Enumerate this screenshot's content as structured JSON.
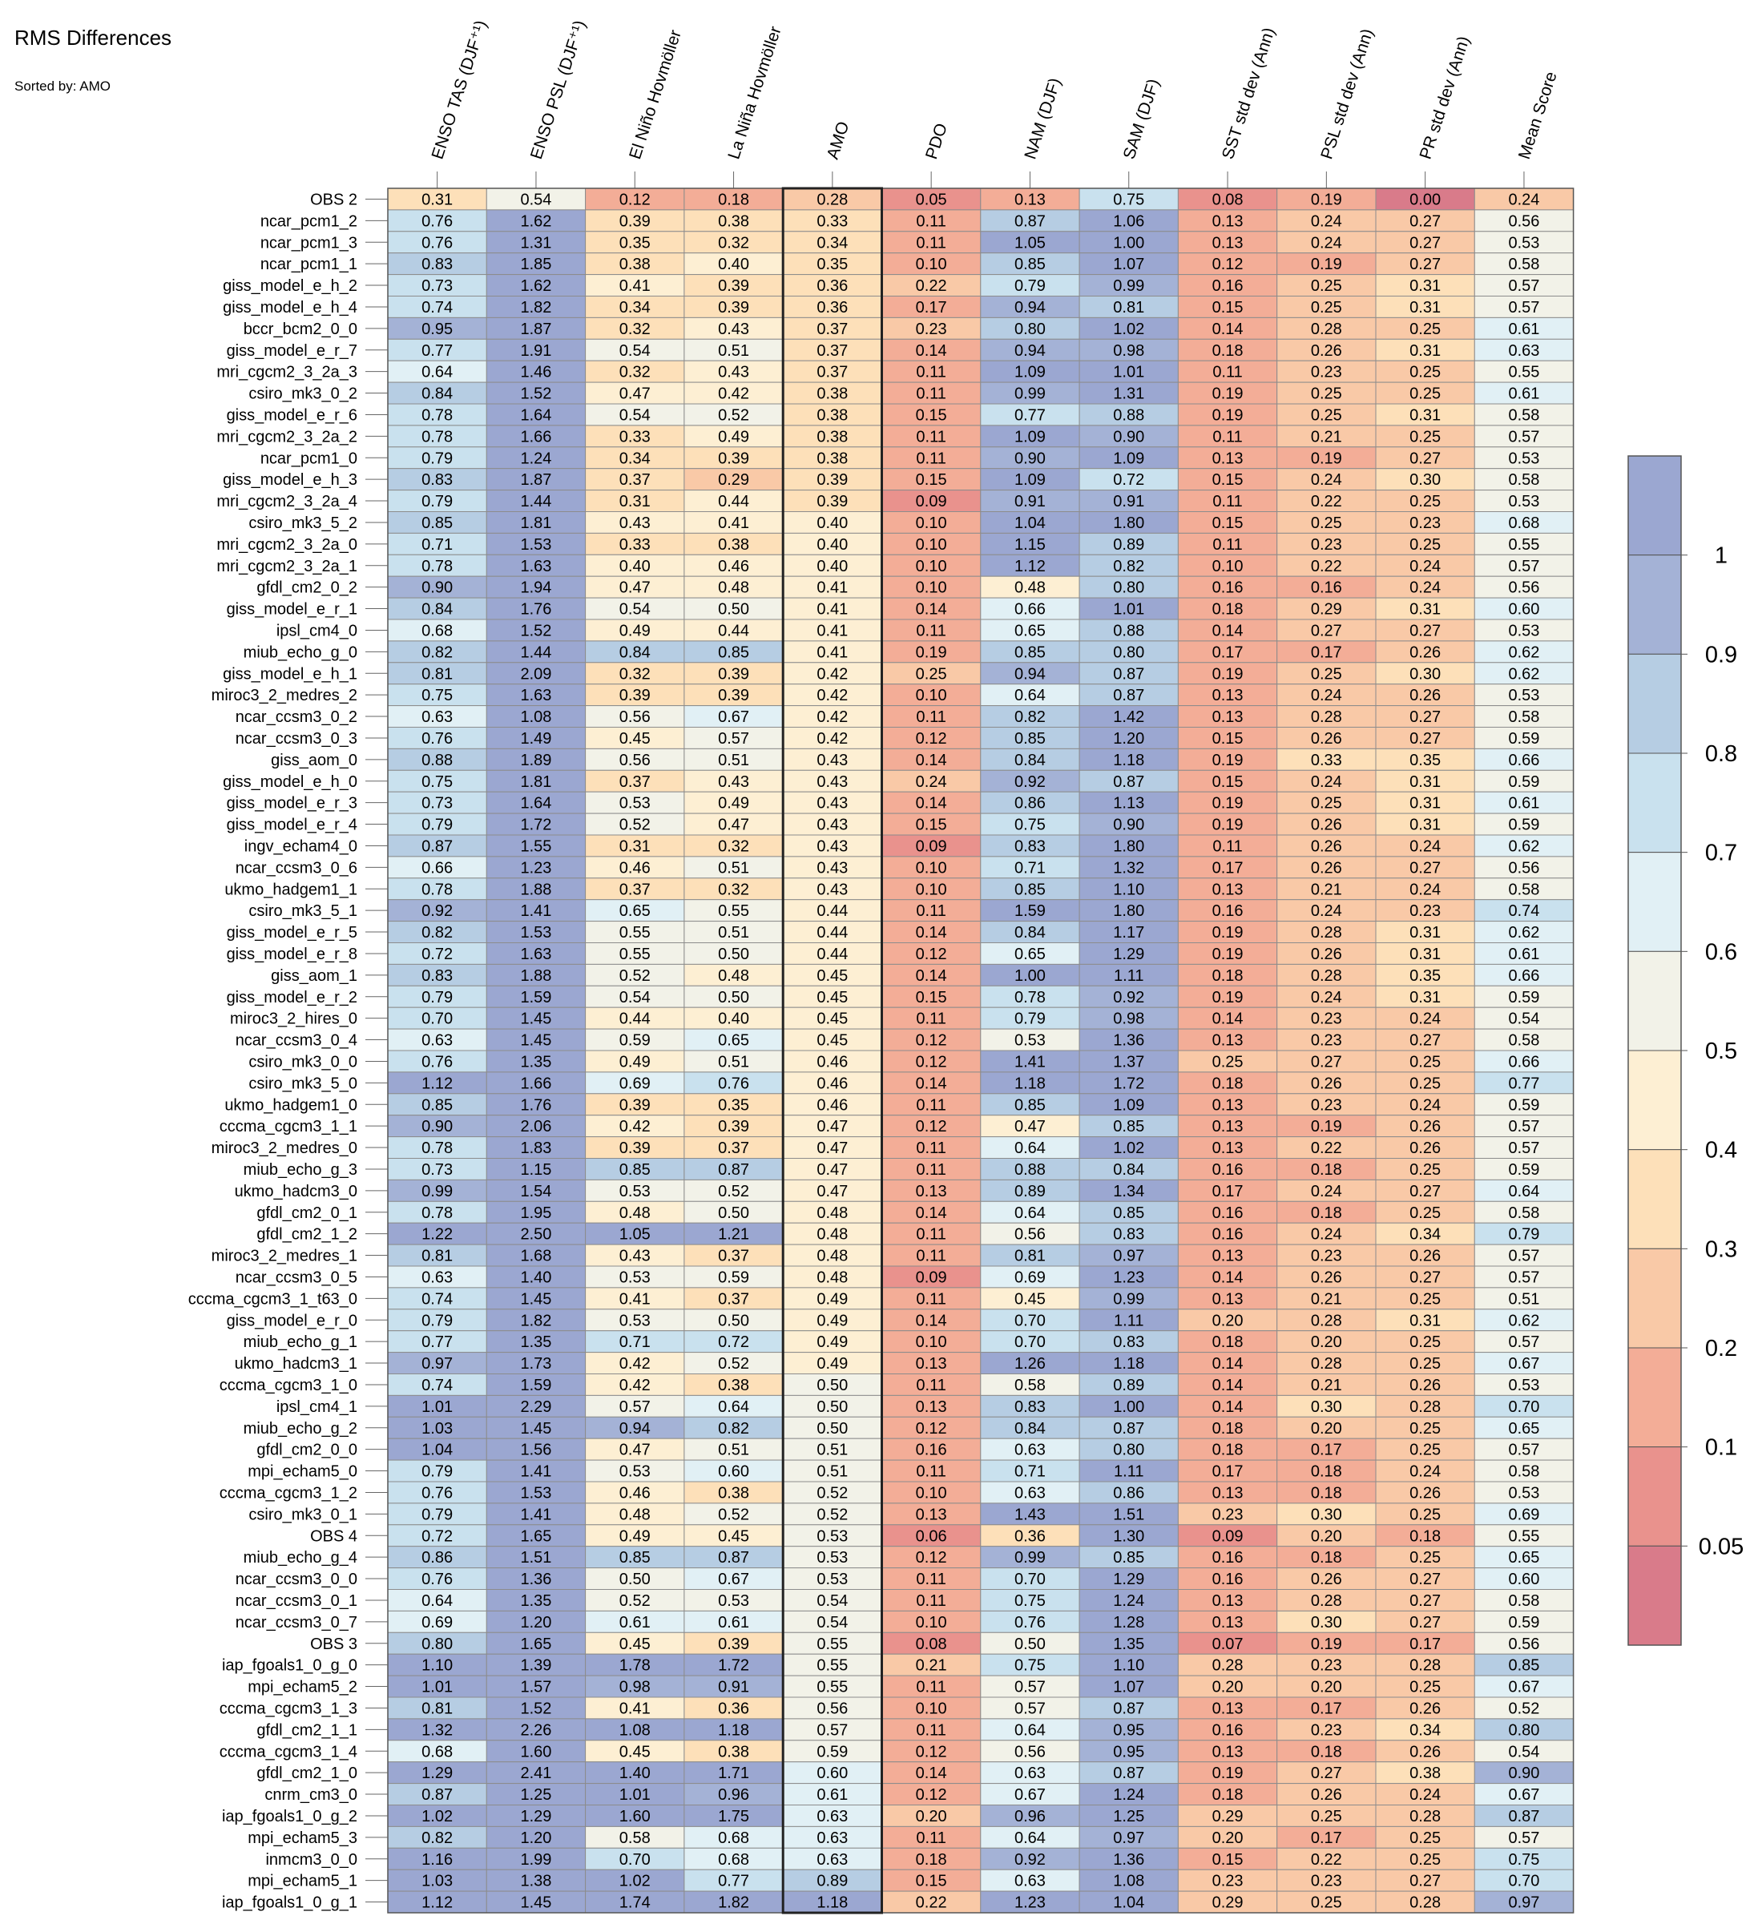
{
  "title": "RMS Differences",
  "subtitle": "Sorted by: AMO",
  "chart_data": {
    "type": "heatmap",
    "columns": [
      "ENSO TAS (DJF⁺¹)",
      "ENSO PSL (DJF⁺¹)",
      "El Niño Hovmöller",
      "La Niña Hovmöller",
      "AMO",
      "PDO",
      "NAM (DJF)",
      "SAM (DJF)",
      "SST std dev (Ann)",
      "PSL std dev (Ann)",
      "PR std dev (Ann)",
      "Mean Score"
    ],
    "sorted_by": "AMO",
    "highlighted_column": "AMO",
    "rows": [
      "OBS 2",
      "ncar_pcm1_2",
      "ncar_pcm1_3",
      "ncar_pcm1_1",
      "giss_model_e_h_2",
      "giss_model_e_h_4",
      "bccr_bcm2_0_0",
      "giss_model_e_r_7",
      "mri_cgcm2_3_2a_3",
      "csiro_mk3_0_2",
      "giss_model_e_r_6",
      "mri_cgcm2_3_2a_2",
      "ncar_pcm1_0",
      "giss_model_e_h_3",
      "mri_cgcm2_3_2a_4",
      "csiro_mk3_5_2",
      "mri_cgcm2_3_2a_0",
      "mri_cgcm2_3_2a_1",
      "gfdl_cm2_0_2",
      "giss_model_e_r_1",
      "ipsl_cm4_0",
      "miub_echo_g_0",
      "giss_model_e_h_1",
      "miroc3_2_medres_2",
      "ncar_ccsm3_0_2",
      "ncar_ccsm3_0_3",
      "giss_aom_0",
      "giss_model_e_h_0",
      "giss_model_e_r_3",
      "giss_model_e_r_4",
      "ingv_echam4_0",
      "ncar_ccsm3_0_6",
      "ukmo_hadgem1_1",
      "csiro_mk3_5_1",
      "giss_model_e_r_5",
      "giss_model_e_r_8",
      "giss_aom_1",
      "giss_model_e_r_2",
      "miroc3_2_hires_0",
      "ncar_ccsm3_0_4",
      "csiro_mk3_0_0",
      "csiro_mk3_5_0",
      "ukmo_hadgem1_0",
      "cccma_cgcm3_1_1",
      "miroc3_2_medres_0",
      "miub_echo_g_3",
      "ukmo_hadcm3_0",
      "gfdl_cm2_0_1",
      "gfdl_cm2_1_2",
      "miroc3_2_medres_1",
      "ncar_ccsm3_0_5",
      "cccma_cgcm3_1_t63_0",
      "giss_model_e_r_0",
      "miub_echo_g_1",
      "ukmo_hadcm3_1",
      "cccma_cgcm3_1_0",
      "ipsl_cm4_1",
      "miub_echo_g_2",
      "gfdl_cm2_0_0",
      "mpi_echam5_0",
      "cccma_cgcm3_1_2",
      "csiro_mk3_0_1",
      "OBS 4",
      "miub_echo_g_4",
      "ncar_ccsm3_0_0",
      "ncar_ccsm3_0_1",
      "ncar_ccsm3_0_7",
      "OBS 3",
      "iap_fgoals1_0_g_0",
      "mpi_echam5_2",
      "cccma_cgcm3_1_3",
      "gfdl_cm2_1_1",
      "cccma_cgcm3_1_4",
      "gfdl_cm2_1_0",
      "cnrm_cm3_0",
      "iap_fgoals1_0_g_2",
      "mpi_echam5_3",
      "inmcm3_0_0",
      "mpi_echam5_1",
      "iap_fgoals1_0_g_1"
    ],
    "values": [
      [
        "0.31",
        "0.54",
        "0.12",
        "0.18",
        "0.28",
        "0.05",
        "0.13",
        "0.75",
        "0.08",
        "0.19",
        "0.00",
        "0.24"
      ],
      [
        "0.76",
        "1.62",
        "0.39",
        "0.38",
        "0.33",
        "0.11",
        "0.87",
        "1.06",
        "0.13",
        "0.24",
        "0.27",
        "0.56"
      ],
      [
        "0.76",
        "1.31",
        "0.35",
        "0.32",
        "0.34",
        "0.11",
        "1.05",
        "1.00",
        "0.13",
        "0.24",
        "0.27",
        "0.53"
      ],
      [
        "0.83",
        "1.85",
        "0.38",
        "0.40",
        "0.35",
        "0.10",
        "0.85",
        "1.07",
        "0.12",
        "0.19",
        "0.27",
        "0.58"
      ],
      [
        "0.73",
        "1.62",
        "0.41",
        "0.39",
        "0.36",
        "0.22",
        "0.79",
        "0.99",
        "0.16",
        "0.25",
        "0.31",
        "0.57"
      ],
      [
        "0.74",
        "1.82",
        "0.34",
        "0.39",
        "0.36",
        "0.17",
        "0.94",
        "0.81",
        "0.15",
        "0.25",
        "0.31",
        "0.57"
      ],
      [
        "0.95",
        "1.87",
        "0.32",
        "0.43",
        "0.37",
        "0.23",
        "0.80",
        "1.02",
        "0.14",
        "0.28",
        "0.25",
        "0.61"
      ],
      [
        "0.77",
        "1.91",
        "0.54",
        "0.51",
        "0.37",
        "0.14",
        "0.94",
        "0.98",
        "0.18",
        "0.26",
        "0.31",
        "0.63"
      ],
      [
        "0.64",
        "1.46",
        "0.32",
        "0.43",
        "0.37",
        "0.11",
        "1.09",
        "1.01",
        "0.11",
        "0.23",
        "0.25",
        "0.55"
      ],
      [
        "0.84",
        "1.52",
        "0.47",
        "0.42",
        "0.38",
        "0.11",
        "0.99",
        "1.31",
        "0.19",
        "0.25",
        "0.25",
        "0.61"
      ],
      [
        "0.78",
        "1.64",
        "0.54",
        "0.52",
        "0.38",
        "0.15",
        "0.77",
        "0.88",
        "0.19",
        "0.25",
        "0.31",
        "0.58"
      ],
      [
        "0.78",
        "1.66",
        "0.33",
        "0.49",
        "0.38",
        "0.11",
        "1.09",
        "0.90",
        "0.11",
        "0.21",
        "0.25",
        "0.57"
      ],
      [
        "0.79",
        "1.24",
        "0.34",
        "0.39",
        "0.38",
        "0.11",
        "0.90",
        "1.09",
        "0.13",
        "0.19",
        "0.27",
        "0.53"
      ],
      [
        "0.83",
        "1.87",
        "0.37",
        "0.29",
        "0.39",
        "0.15",
        "1.09",
        "0.72",
        "0.15",
        "0.24",
        "0.30",
        "0.58"
      ],
      [
        "0.79",
        "1.44",
        "0.31",
        "0.44",
        "0.39",
        "0.09",
        "0.91",
        "0.91",
        "0.11",
        "0.22",
        "0.25",
        "0.53"
      ],
      [
        "0.85",
        "1.81",
        "0.43",
        "0.41",
        "0.40",
        "0.10",
        "1.04",
        "1.80",
        "0.15",
        "0.25",
        "0.23",
        "0.68"
      ],
      [
        "0.71",
        "1.53",
        "0.33",
        "0.38",
        "0.40",
        "0.10",
        "1.15",
        "0.89",
        "0.11",
        "0.23",
        "0.25",
        "0.55"
      ],
      [
        "0.78",
        "1.63",
        "0.40",
        "0.46",
        "0.40",
        "0.10",
        "1.12",
        "0.82",
        "0.10",
        "0.22",
        "0.24",
        "0.57"
      ],
      [
        "0.90",
        "1.94",
        "0.47",
        "0.48",
        "0.41",
        "0.10",
        "0.48",
        "0.80",
        "0.16",
        "0.16",
        "0.24",
        "0.56"
      ],
      [
        "0.84",
        "1.76",
        "0.54",
        "0.50",
        "0.41",
        "0.14",
        "0.66",
        "1.01",
        "0.18",
        "0.29",
        "0.31",
        "0.60"
      ],
      [
        "0.68",
        "1.52",
        "0.49",
        "0.44",
        "0.41",
        "0.11",
        "0.65",
        "0.88",
        "0.14",
        "0.27",
        "0.27",
        "0.53"
      ],
      [
        "0.82",
        "1.44",
        "0.84",
        "0.85",
        "0.41",
        "0.19",
        "0.85",
        "0.80",
        "0.17",
        "0.17",
        "0.26",
        "0.62"
      ],
      [
        "0.81",
        "2.09",
        "0.32",
        "0.39",
        "0.42",
        "0.25",
        "0.94",
        "0.87",
        "0.19",
        "0.25",
        "0.30",
        "0.62"
      ],
      [
        "0.75",
        "1.63",
        "0.39",
        "0.39",
        "0.42",
        "0.10",
        "0.64",
        "0.87",
        "0.13",
        "0.24",
        "0.26",
        "0.53"
      ],
      [
        "0.63",
        "1.08",
        "0.56",
        "0.67",
        "0.42",
        "0.11",
        "0.82",
        "1.42",
        "0.13",
        "0.28",
        "0.27",
        "0.58"
      ],
      [
        "0.76",
        "1.49",
        "0.45",
        "0.57",
        "0.42",
        "0.12",
        "0.85",
        "1.20",
        "0.15",
        "0.26",
        "0.27",
        "0.59"
      ],
      [
        "0.88",
        "1.89",
        "0.56",
        "0.51",
        "0.43",
        "0.14",
        "0.84",
        "1.18",
        "0.19",
        "0.33",
        "0.35",
        "0.66"
      ],
      [
        "0.75",
        "1.81",
        "0.37",
        "0.43",
        "0.43",
        "0.24",
        "0.92",
        "0.87",
        "0.15",
        "0.24",
        "0.31",
        "0.59"
      ],
      [
        "0.73",
        "1.64",
        "0.53",
        "0.49",
        "0.43",
        "0.14",
        "0.86",
        "1.13",
        "0.19",
        "0.25",
        "0.31",
        "0.61"
      ],
      [
        "0.79",
        "1.72",
        "0.52",
        "0.47",
        "0.43",
        "0.15",
        "0.75",
        "0.90",
        "0.19",
        "0.26",
        "0.31",
        "0.59"
      ],
      [
        "0.87",
        "1.55",
        "0.31",
        "0.32",
        "0.43",
        "0.09",
        "0.83",
        "1.80",
        "0.11",
        "0.26",
        "0.24",
        "0.62"
      ],
      [
        "0.66",
        "1.23",
        "0.46",
        "0.51",
        "0.43",
        "0.10",
        "0.71",
        "1.32",
        "0.17",
        "0.26",
        "0.27",
        "0.56"
      ],
      [
        "0.78",
        "1.88",
        "0.37",
        "0.32",
        "0.43",
        "0.10",
        "0.85",
        "1.10",
        "0.13",
        "0.21",
        "0.24",
        "0.58"
      ],
      [
        "0.92",
        "1.41",
        "0.65",
        "0.55",
        "0.44",
        "0.11",
        "1.59",
        "1.80",
        "0.16",
        "0.24",
        "0.23",
        "0.74"
      ],
      [
        "0.82",
        "1.53",
        "0.55",
        "0.51",
        "0.44",
        "0.14",
        "0.84",
        "1.17",
        "0.19",
        "0.28",
        "0.31",
        "0.62"
      ],
      [
        "0.72",
        "1.63",
        "0.55",
        "0.50",
        "0.44",
        "0.12",
        "0.65",
        "1.29",
        "0.19",
        "0.26",
        "0.31",
        "0.61"
      ],
      [
        "0.83",
        "1.88",
        "0.52",
        "0.48",
        "0.45",
        "0.14",
        "1.00",
        "1.11",
        "0.18",
        "0.28",
        "0.35",
        "0.66"
      ],
      [
        "0.79",
        "1.59",
        "0.54",
        "0.50",
        "0.45",
        "0.15",
        "0.78",
        "0.92",
        "0.19",
        "0.24",
        "0.31",
        "0.59"
      ],
      [
        "0.70",
        "1.45",
        "0.44",
        "0.40",
        "0.45",
        "0.11",
        "0.79",
        "0.98",
        "0.14",
        "0.23",
        "0.24",
        "0.54"
      ],
      [
        "0.63",
        "1.45",
        "0.59",
        "0.65",
        "0.45",
        "0.12",
        "0.53",
        "1.36",
        "0.13",
        "0.23",
        "0.27",
        "0.58"
      ],
      [
        "0.76",
        "1.35",
        "0.49",
        "0.51",
        "0.46",
        "0.12",
        "1.41",
        "1.37",
        "0.25",
        "0.27",
        "0.25",
        "0.66"
      ],
      [
        "1.12",
        "1.66",
        "0.69",
        "0.76",
        "0.46",
        "0.14",
        "1.18",
        "1.72",
        "0.18",
        "0.26",
        "0.25",
        "0.77"
      ],
      [
        "0.85",
        "1.76",
        "0.39",
        "0.35",
        "0.46",
        "0.11",
        "0.85",
        "1.09",
        "0.13",
        "0.23",
        "0.24",
        "0.59"
      ],
      [
        "0.90",
        "2.06",
        "0.42",
        "0.39",
        "0.47",
        "0.12",
        "0.47",
        "0.85",
        "0.13",
        "0.19",
        "0.26",
        "0.57"
      ],
      [
        "0.78",
        "1.83",
        "0.39",
        "0.37",
        "0.47",
        "0.11",
        "0.64",
        "1.02",
        "0.13",
        "0.22",
        "0.26",
        "0.57"
      ],
      [
        "0.73",
        "1.15",
        "0.85",
        "0.87",
        "0.47",
        "0.11",
        "0.88",
        "0.84",
        "0.16",
        "0.18",
        "0.25",
        "0.59"
      ],
      [
        "0.99",
        "1.54",
        "0.53",
        "0.52",
        "0.47",
        "0.13",
        "0.89",
        "1.34",
        "0.17",
        "0.24",
        "0.27",
        "0.64"
      ],
      [
        "0.78",
        "1.95",
        "0.48",
        "0.50",
        "0.48",
        "0.14",
        "0.64",
        "0.85",
        "0.16",
        "0.18",
        "0.25",
        "0.58"
      ],
      [
        "1.22",
        "2.50",
        "1.05",
        "1.21",
        "0.48",
        "0.11",
        "0.56",
        "0.83",
        "0.16",
        "0.24",
        "0.34",
        "0.79"
      ],
      [
        "0.81",
        "1.68",
        "0.43",
        "0.37",
        "0.48",
        "0.11",
        "0.81",
        "0.97",
        "0.13",
        "0.23",
        "0.26",
        "0.57"
      ],
      [
        "0.63",
        "1.40",
        "0.53",
        "0.59",
        "0.48",
        "0.09",
        "0.69",
        "1.23",
        "0.14",
        "0.26",
        "0.27",
        "0.57"
      ],
      [
        "0.74",
        "1.45",
        "0.41",
        "0.37",
        "0.49",
        "0.11",
        "0.45",
        "0.99",
        "0.13",
        "0.21",
        "0.25",
        "0.51"
      ],
      [
        "0.79",
        "1.82",
        "0.53",
        "0.50",
        "0.49",
        "0.14",
        "0.70",
        "1.11",
        "0.20",
        "0.28",
        "0.31",
        "0.62"
      ],
      [
        "0.77",
        "1.35",
        "0.71",
        "0.72",
        "0.49",
        "0.10",
        "0.70",
        "0.83",
        "0.18",
        "0.20",
        "0.25",
        "0.57"
      ],
      [
        "0.97",
        "1.73",
        "0.42",
        "0.52",
        "0.49",
        "0.13",
        "1.26",
        "1.18",
        "0.14",
        "0.28",
        "0.25",
        "0.67"
      ],
      [
        "0.74",
        "1.59",
        "0.42",
        "0.38",
        "0.50",
        "0.11",
        "0.58",
        "0.89",
        "0.14",
        "0.21",
        "0.26",
        "0.53"
      ],
      [
        "1.01",
        "2.29",
        "0.57",
        "0.64",
        "0.50",
        "0.13",
        "0.83",
        "1.00",
        "0.14",
        "0.30",
        "0.28",
        "0.70"
      ],
      [
        "1.03",
        "1.45",
        "0.94",
        "0.82",
        "0.50",
        "0.12",
        "0.84",
        "0.87",
        "0.18",
        "0.20",
        "0.25",
        "0.65"
      ],
      [
        "1.04",
        "1.56",
        "0.47",
        "0.51",
        "0.51",
        "0.16",
        "0.63",
        "0.80",
        "0.18",
        "0.17",
        "0.25",
        "0.57"
      ],
      [
        "0.79",
        "1.41",
        "0.53",
        "0.60",
        "0.51",
        "0.11",
        "0.71",
        "1.11",
        "0.17",
        "0.18",
        "0.24",
        "0.58"
      ],
      [
        "0.76",
        "1.53",
        "0.46",
        "0.38",
        "0.52",
        "0.10",
        "0.63",
        "0.86",
        "0.13",
        "0.18",
        "0.26",
        "0.53"
      ],
      [
        "0.79",
        "1.41",
        "0.48",
        "0.52",
        "0.52",
        "0.13",
        "1.43",
        "1.51",
        "0.23",
        "0.30",
        "0.25",
        "0.69"
      ],
      [
        "0.72",
        "1.65",
        "0.49",
        "0.45",
        "0.53",
        "0.06",
        "0.36",
        "1.30",
        "0.09",
        "0.20",
        "0.18",
        "0.55"
      ],
      [
        "0.86",
        "1.51",
        "0.85",
        "0.87",
        "0.53",
        "0.12",
        "0.99",
        "0.85",
        "0.16",
        "0.18",
        "0.25",
        "0.65"
      ],
      [
        "0.76",
        "1.36",
        "0.50",
        "0.67",
        "0.53",
        "0.11",
        "0.70",
        "1.29",
        "0.16",
        "0.26",
        "0.27",
        "0.60"
      ],
      [
        "0.64",
        "1.35",
        "0.52",
        "0.53",
        "0.54",
        "0.11",
        "0.75",
        "1.24",
        "0.13",
        "0.28",
        "0.27",
        "0.58"
      ],
      [
        "0.69",
        "1.20",
        "0.61",
        "0.61",
        "0.54",
        "0.10",
        "0.76",
        "1.28",
        "0.13",
        "0.30",
        "0.27",
        "0.59"
      ],
      [
        "0.80",
        "1.65",
        "0.45",
        "0.39",
        "0.55",
        "0.08",
        "0.50",
        "1.35",
        "0.07",
        "0.19",
        "0.17",
        "0.56"
      ],
      [
        "1.10",
        "1.39",
        "1.78",
        "1.72",
        "0.55",
        "0.21",
        "0.75",
        "1.10",
        "0.28",
        "0.23",
        "0.28",
        "0.85"
      ],
      [
        "1.01",
        "1.57",
        "0.98",
        "0.91",
        "0.55",
        "0.11",
        "0.57",
        "1.07",
        "0.20",
        "0.20",
        "0.25",
        "0.67"
      ],
      [
        "0.81",
        "1.52",
        "0.41",
        "0.36",
        "0.56",
        "0.10",
        "0.57",
        "0.87",
        "0.13",
        "0.17",
        "0.26",
        "0.52"
      ],
      [
        "1.32",
        "2.26",
        "1.08",
        "1.18",
        "0.57",
        "0.11",
        "0.64",
        "0.95",
        "0.16",
        "0.23",
        "0.34",
        "0.80"
      ],
      [
        "0.68",
        "1.60",
        "0.45",
        "0.38",
        "0.59",
        "0.12",
        "0.56",
        "0.95",
        "0.13",
        "0.18",
        "0.26",
        "0.54"
      ],
      [
        "1.29",
        "2.41",
        "1.40",
        "1.71",
        "0.60",
        "0.14",
        "0.63",
        "0.87",
        "0.19",
        "0.27",
        "0.38",
        "0.90"
      ],
      [
        "0.87",
        "1.25",
        "1.01",
        "0.96",
        "0.61",
        "0.12",
        "0.67",
        "1.24",
        "0.18",
        "0.26",
        "0.24",
        "0.67"
      ],
      [
        "1.02",
        "1.29",
        "1.60",
        "1.75",
        "0.63",
        "0.20",
        "0.96",
        "1.25",
        "0.29",
        "0.25",
        "0.28",
        "0.87"
      ],
      [
        "0.82",
        "1.20",
        "0.58",
        "0.68",
        "0.63",
        "0.11",
        "0.64",
        "0.97",
        "0.20",
        "0.17",
        "0.25",
        "0.57"
      ],
      [
        "1.16",
        "1.99",
        "0.70",
        "0.68",
        "0.63",
        "0.18",
        "0.92",
        "1.36",
        "0.15",
        "0.22",
        "0.25",
        "0.75"
      ],
      [
        "1.03",
        "1.38",
        "1.02",
        "0.77",
        "0.89",
        "0.15",
        "0.63",
        "1.08",
        "0.23",
        "0.23",
        "0.27",
        "0.70"
      ],
      [
        "1.12",
        "1.45",
        "1.74",
        "1.82",
        "1.18",
        "0.22",
        "1.23",
        "1.04",
        "0.29",
        "0.25",
        "0.28",
        "0.97"
      ]
    ],
    "colorbar": {
      "tick_labels": [
        "1",
        "0.9",
        "0.8",
        "0.7",
        "0.6",
        "0.5",
        "0.4",
        "0.3",
        "0.2",
        "0.1",
        "0.05"
      ],
      "thresholds": [
        0.05,
        0.1,
        0.2,
        0.3,
        0.4,
        0.5,
        0.6,
        0.7,
        0.8,
        0.9,
        1.0
      ],
      "colors": [
        "#d97b8a",
        "#e9928d",
        "#f3ad97",
        "#f9c9a7",
        "#fde0b9",
        "#fdefd3",
        "#f2f2e8",
        "#e1f0f5",
        "#c9e1ee",
        "#b6cde3",
        "#a4b2d6",
        "#9ba7d1"
      ]
    }
  }
}
